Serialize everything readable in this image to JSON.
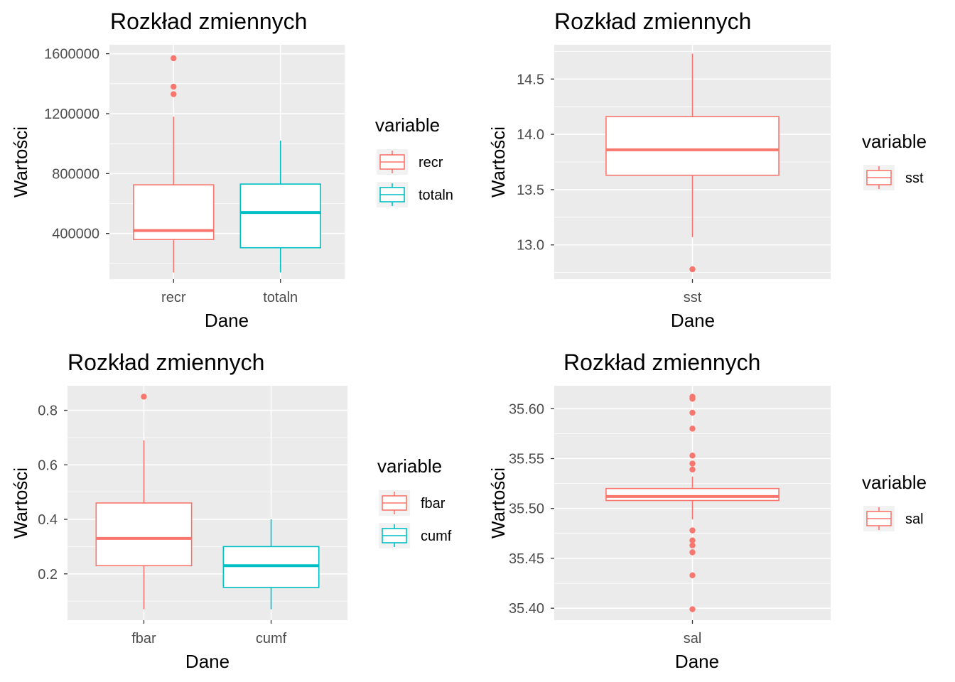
{
  "chart_data": [
    {
      "type": "boxplot",
      "title": "Rozkład zmiennych",
      "xlabel": "Dane",
      "ylabel": "Wartości",
      "legend_title": "variable",
      "legend_position": "right",
      "ylim": [
        95000,
        1660000
      ],
      "yticks": [
        400000,
        800000,
        1200000,
        1600000
      ],
      "ytick_labels": [
        "400000",
        "800000",
        "1200000",
        "1600000"
      ],
      "categories": [
        "recr",
        "totaln"
      ],
      "series": [
        {
          "name": "recr",
          "color": "#F8766D",
          "min": 140000,
          "q1": 360000,
          "median": 420000,
          "q3": 725000,
          "max": 1180000,
          "outliers": [
            1330000,
            1380000,
            1570000
          ]
        },
        {
          "name": "totaln",
          "color": "#00BFC4",
          "min": 140000,
          "q1": 305000,
          "median": 540000,
          "q3": 730000,
          "max": 1020000,
          "outliers": []
        }
      ]
    },
    {
      "type": "boxplot",
      "title": "Rozkład zmiennych",
      "xlabel": "Dane",
      "ylabel": "Wartości",
      "legend_title": "variable",
      "legend_position": "right",
      "ylim": [
        12.69,
        14.81
      ],
      "yticks": [
        13.0,
        13.5,
        14.0,
        14.5
      ],
      "ytick_labels": [
        "13.0",
        "13.5",
        "14.0",
        "14.5"
      ],
      "categories": [
        "sst"
      ],
      "series": [
        {
          "name": "sst",
          "color": "#F8766D",
          "min": 13.07,
          "q1": 13.63,
          "median": 13.86,
          "q3": 14.16,
          "max": 14.73,
          "outliers": [
            12.78
          ]
        }
      ]
    },
    {
      "type": "boxplot",
      "title": "Rozkład zmiennych",
      "xlabel": "Dane",
      "ylabel": "Wartości",
      "legend_title": "variable",
      "legend_position": "right",
      "ylim": [
        0.03,
        0.89
      ],
      "yticks": [
        0.2,
        0.4,
        0.6,
        0.8
      ],
      "ytick_labels": [
        "0.2",
        "0.4",
        "0.6",
        "0.8"
      ],
      "categories": [
        "fbar",
        "cumf"
      ],
      "series": [
        {
          "name": "fbar",
          "color": "#F8766D",
          "min": 0.07,
          "q1": 0.23,
          "median": 0.33,
          "q3": 0.46,
          "max": 0.69,
          "outliers": [
            0.85
          ]
        },
        {
          "name": "cumf",
          "color": "#00BFC4",
          "min": 0.07,
          "q1": 0.15,
          "median": 0.23,
          "q3": 0.3,
          "max": 0.4,
          "outliers": []
        }
      ]
    },
    {
      "type": "boxplot",
      "title": "Rozkład zmiennych",
      "xlabel": "Dane",
      "ylabel": "Wartości",
      "legend_title": "variable",
      "legend_position": "right",
      "ylim": [
        35.388,
        35.623
      ],
      "yticks": [
        35.4,
        35.45,
        35.5,
        35.55,
        35.6
      ],
      "ytick_labels": [
        "35.40",
        "35.45",
        "35.50",
        "35.55",
        "35.60"
      ],
      "categories": [
        "sal"
      ],
      "series": [
        {
          "name": "sal",
          "color": "#F8766D",
          "min": 35.489,
          "q1": 35.508,
          "median": 35.512,
          "q3": 35.52,
          "max": 35.532,
          "outliers": [
            35.539,
            35.545,
            35.553,
            35.58,
            35.596,
            35.61,
            35.612,
            35.478,
            35.468,
            35.463,
            35.456,
            35.433,
            35.399
          ]
        }
      ]
    }
  ]
}
